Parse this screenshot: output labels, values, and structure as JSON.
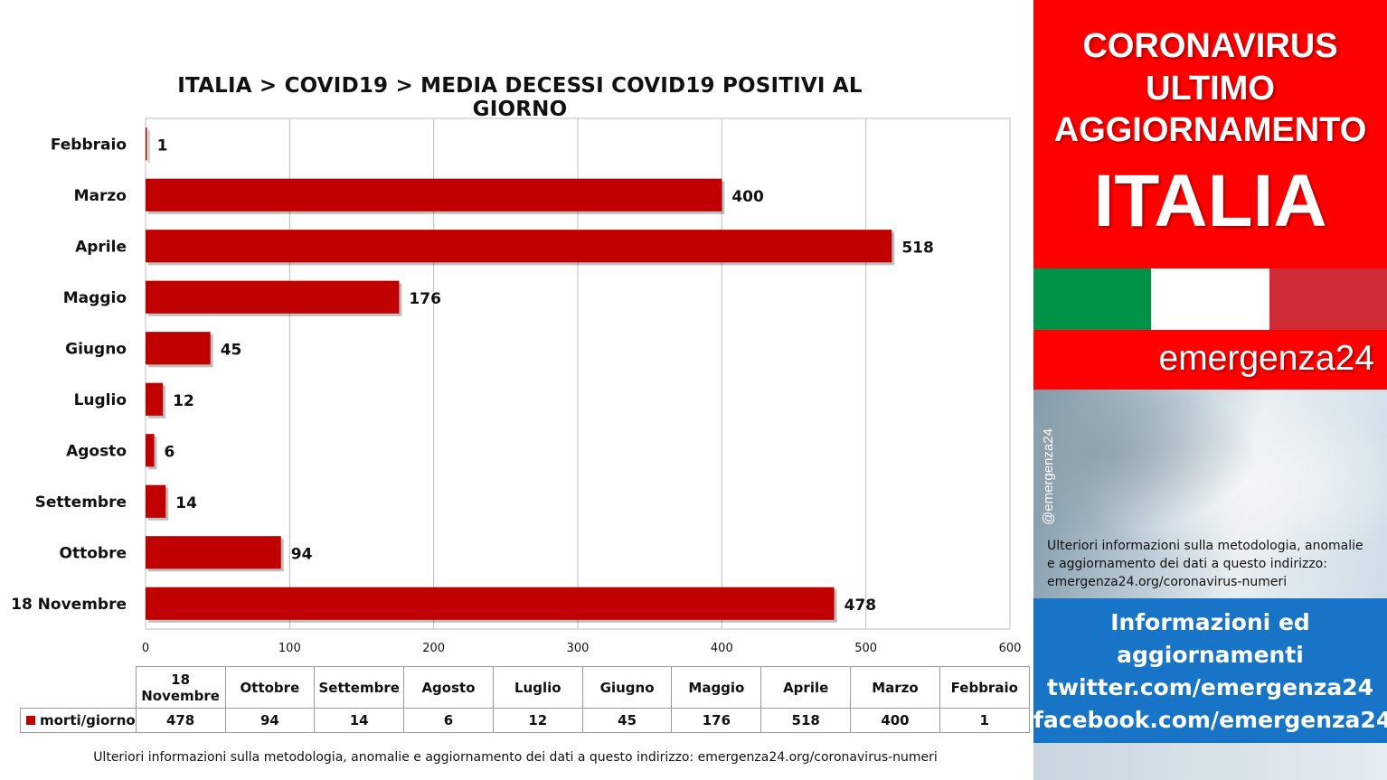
{
  "chart_data": {
    "type": "bar",
    "orientation": "horizontal",
    "title": "ITALIA >  COVID19 > MEDIA DECESSI COVID19 POSITIVI AL GIORNO",
    "categories": [
      "Febbraio",
      "Marzo",
      "Aprile",
      "Maggio",
      "Giugno",
      "Luglio",
      "Agosto",
      "Settembre",
      "Ottobre",
      "18 Novembre"
    ],
    "series": [
      {
        "name": "morti/giorno",
        "values": [
          1,
          400,
          518,
          176,
          45,
          12,
          6,
          14,
          94,
          478
        ]
      }
    ],
    "xlim": [
      0,
      600
    ],
    "xticks": [
      0,
      100,
      200,
      300,
      400,
      500,
      600
    ],
    "grid": true,
    "color": "#c00000",
    "data_table": {
      "headers": [
        "18 Novembre",
        "Ottobre",
        "Settembre",
        "Agosto",
        "Luglio",
        "Giugno",
        "Maggio",
        "Aprile",
        "Marzo",
        "Febbraio"
      ],
      "series_label": "morti/giorno",
      "values": [
        "478",
        "94",
        "14",
        "6",
        "12",
        "45",
        "176",
        "518",
        "400",
        "1"
      ]
    }
  },
  "footer_note": "Ulteriori informazioni sulla metodologia, anomalie e aggiornamento dei dati a questo indirizzo: emergenza24.org/coronavirus-numeri",
  "panel": {
    "header_lines": [
      "CORONAVIRUS",
      "ULTIMO",
      "AGGIORNAMENTO"
    ],
    "country": "ITALIA",
    "flag_colors": [
      "#009246",
      "#ffffff",
      "#ce2b37"
    ],
    "brand": "emergenza24",
    "handle": "@emergenza24",
    "note_lines": [
      "Ulteriori informazioni sulla metodologia, anomalie",
      "e aggiornamento dei dati a questo indirizzo:",
      "emergenza24.org/coronavirus-numeri"
    ],
    "info_lines": [
      "Informazioni ed",
      "aggiornamenti",
      "twitter.com/emergenza24",
      "facebook.com/emergenza24"
    ]
  }
}
